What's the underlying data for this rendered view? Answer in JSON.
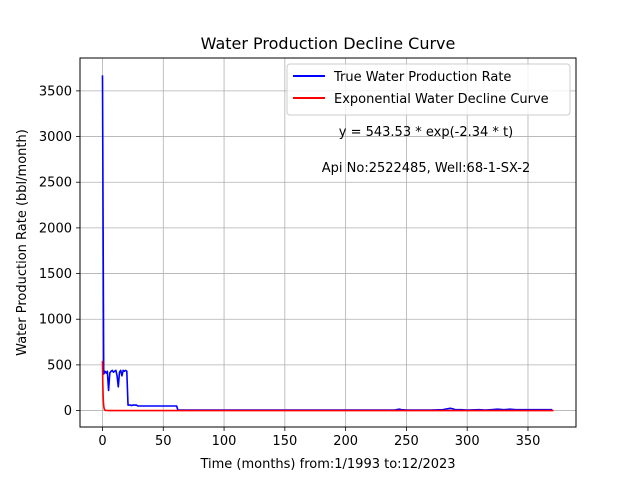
{
  "chart_data": {
    "type": "line",
    "title": "Water Production Decline Curve",
    "xlabel": "Time (months) from:1/1993 to:12/2023",
    "ylabel": "Water Production Rate (bbl/month)",
    "xlim": [
      -18.5,
      389.5
    ],
    "ylim": [
      -180,
      3860
    ],
    "xticks": [
      0,
      50,
      100,
      150,
      200,
      250,
      300,
      350
    ],
    "yticks": [
      0,
      500,
      1000,
      1500,
      2000,
      2500,
      3000,
      3500
    ],
    "grid": true,
    "legend_position": "upper-right",
    "series": [
      {
        "name": "True Water Production Rate",
        "color": "#0000ff",
        "x": [
          0,
          1,
          2,
          3,
          4,
          5,
          6,
          7,
          8,
          9,
          10,
          11,
          12,
          13,
          14,
          15,
          16,
          17,
          18,
          19,
          20,
          21,
          22,
          23,
          24,
          25,
          26,
          27,
          28,
          29,
          30,
          31,
          32,
          35,
          40,
          45,
          50,
          55,
          58,
          60,
          61,
          62,
          100,
          150,
          200,
          240,
          244,
          246,
          250,
          260,
          270,
          280,
          286,
          288,
          290,
          295,
          300,
          310,
          315,
          320,
          325,
          330,
          335,
          340,
          350,
          360,
          370
        ],
        "y": [
          3670,
          400,
          430,
          410,
          430,
          220,
          410,
          430,
          440,
          420,
          430,
          440,
          380,
          260,
          420,
          440,
          380,
          440,
          430,
          440,
          430,
          60,
          60,
          60,
          55,
          60,
          60,
          60,
          60,
          50,
          50,
          50,
          50,
          50,
          50,
          50,
          50,
          50,
          50,
          50,
          50,
          5,
          5,
          5,
          5,
          5,
          15,
          10,
          5,
          5,
          5,
          10,
          25,
          20,
          10,
          10,
          5,
          10,
          5,
          10,
          15,
          10,
          15,
          10,
          10,
          10,
          10
        ]
      },
      {
        "name": "Exponential Water Decline Curve",
        "color": "#ff0000",
        "x": [
          0,
          0.25,
          0.5,
          0.75,
          1,
          1.25,
          1.5,
          2,
          3,
          5,
          10,
          20,
          50,
          100,
          150,
          200,
          250,
          300,
          350,
          371
        ],
        "y": [
          543.53,
          303.0,
          168.9,
          94.2,
          52.5,
          29.3,
          16.3,
          5.1,
          0.5,
          0,
          0,
          0,
          0,
          0,
          0,
          0,
          0,
          0,
          0,
          0
        ]
      }
    ],
    "annotations": [
      {
        "text": "y = 543.53 * exp(-2.34 * t)"
      },
      {
        "text": "Api No:2522485, Well:68-1-SX-2"
      }
    ]
  }
}
